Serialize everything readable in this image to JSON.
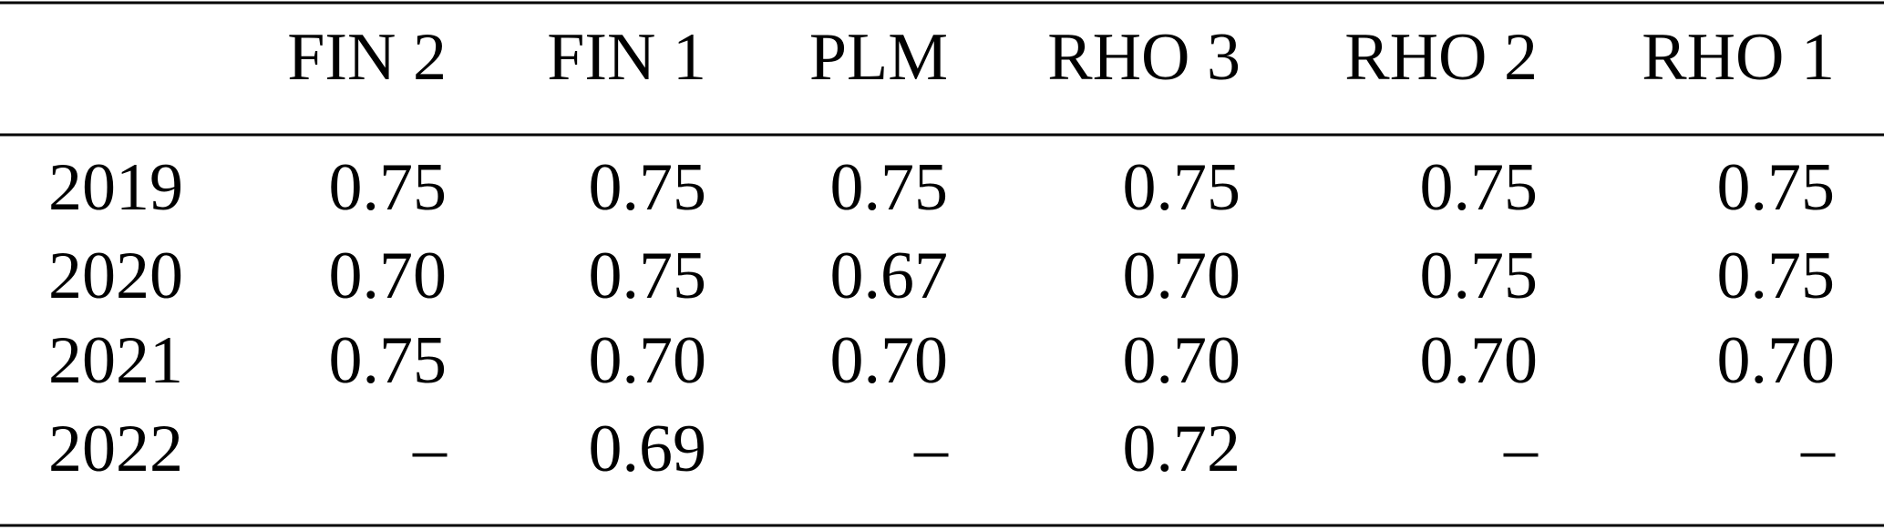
{
  "table": {
    "columns": [
      "FIN 2",
      "FIN 1",
      "PLM",
      "RHO 3",
      "RHO 2",
      "RHO 1"
    ],
    "rows": [
      {
        "label": "2019",
        "cells": [
          "0.75",
          "0.75",
          "0.75",
          "0.75",
          "0.75",
          "0.75"
        ]
      },
      {
        "label": "2020",
        "cells": [
          "0.70",
          "0.75",
          "0.67",
          "0.70",
          "0.75",
          "0.75"
        ]
      },
      {
        "label": "2021",
        "cells": [
          "0.75",
          "0.70",
          "0.70",
          "0.70",
          "0.70",
          "0.70"
        ]
      },
      {
        "label": "2022",
        "cells": [
          "–",
          "0.69",
          "–",
          "0.72",
          "–",
          "–"
        ]
      }
    ]
  }
}
